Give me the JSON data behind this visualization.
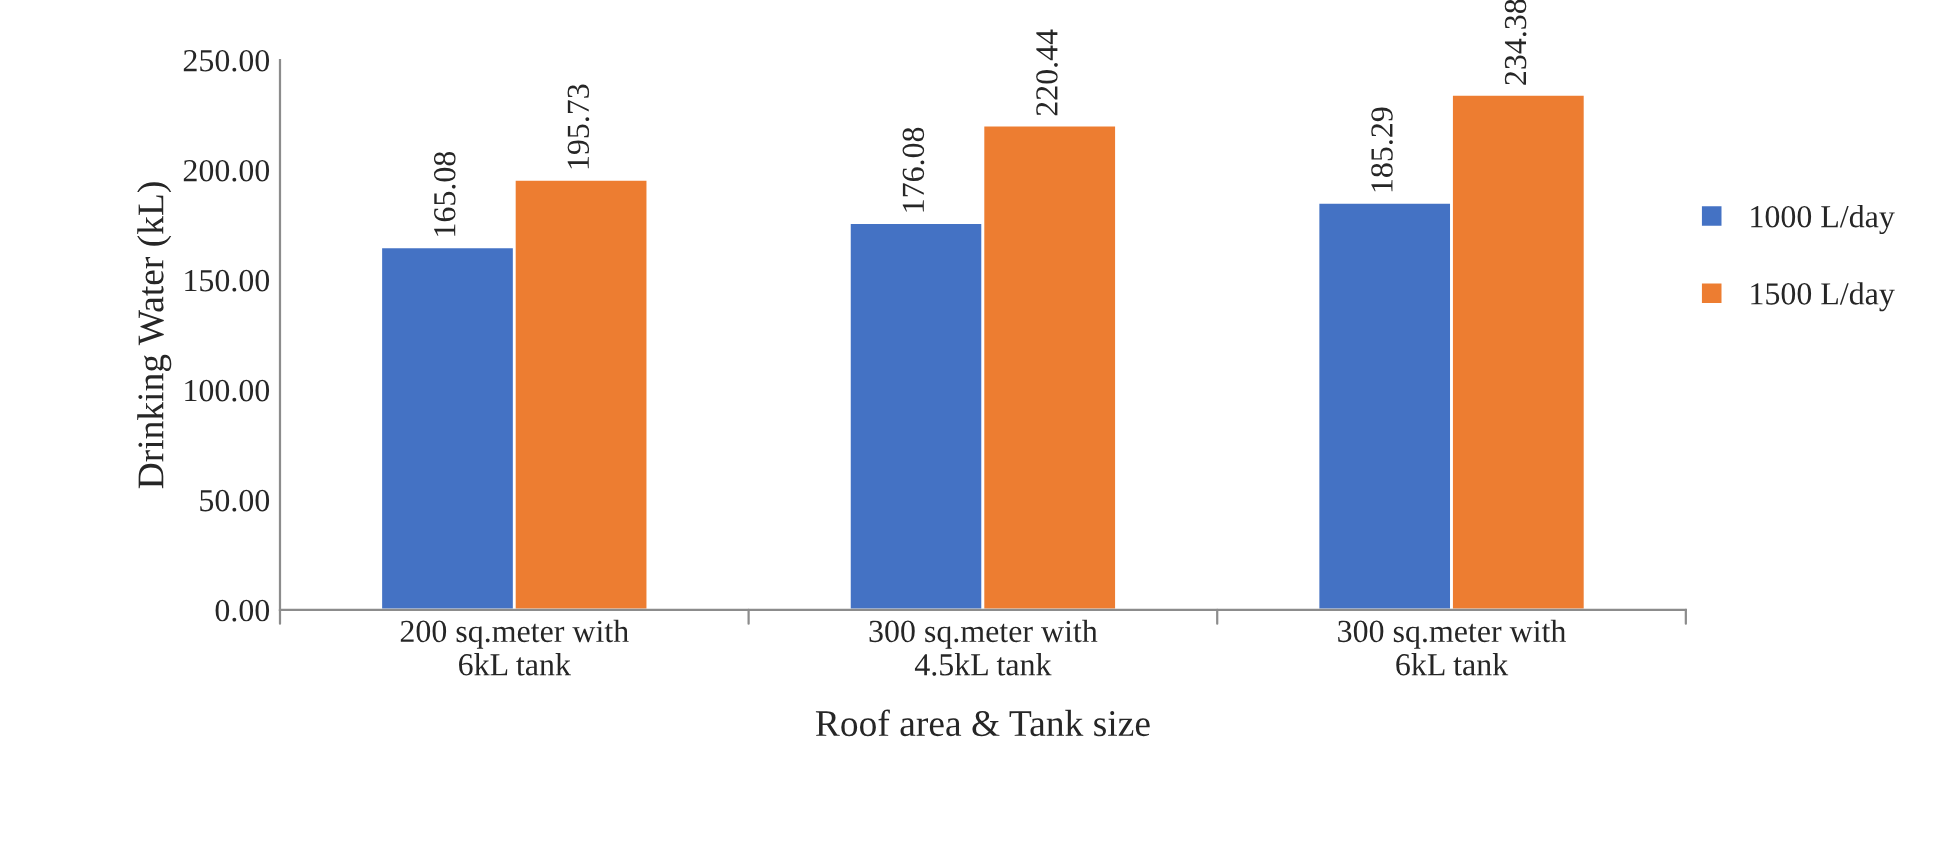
{
  "chart_data": {
    "type": "bar",
    "xlabel": "Roof area & Tank size",
    "ylabel": "Drinking Water (kL)",
    "categories": [
      "200 sq.meter with\n6kL tank",
      "300 sq.meter with\n4.5kL tank",
      "300 sq.meter with\n6kL tank"
    ],
    "series": [
      {
        "name": "1000 L/day",
        "color": "#4472c4",
        "values": [
          165.08,
          176.08,
          185.29
        ],
        "value_labels": [
          "165.08",
          "176.08",
          "185.29"
        ]
      },
      {
        "name": "1500 L/day",
        "color": "#ed7d31",
        "values": [
          195.73,
          220.44,
          234.38
        ],
        "value_labels": [
          "195.73",
          "220.44",
          "234.38"
        ]
      }
    ],
    "ylim": [
      0,
      250
    ],
    "yticks": [
      {
        "value": 0,
        "label": "0.00"
      },
      {
        "value": 50,
        "label": "50.00"
      },
      {
        "value": 100,
        "label": "100.00"
      },
      {
        "value": 150,
        "label": "150.00"
      },
      {
        "value": 200,
        "label": "200.00"
      },
      {
        "value": 250,
        "label": "250.00"
      }
    ],
    "legend": "right",
    "grid": false
  }
}
